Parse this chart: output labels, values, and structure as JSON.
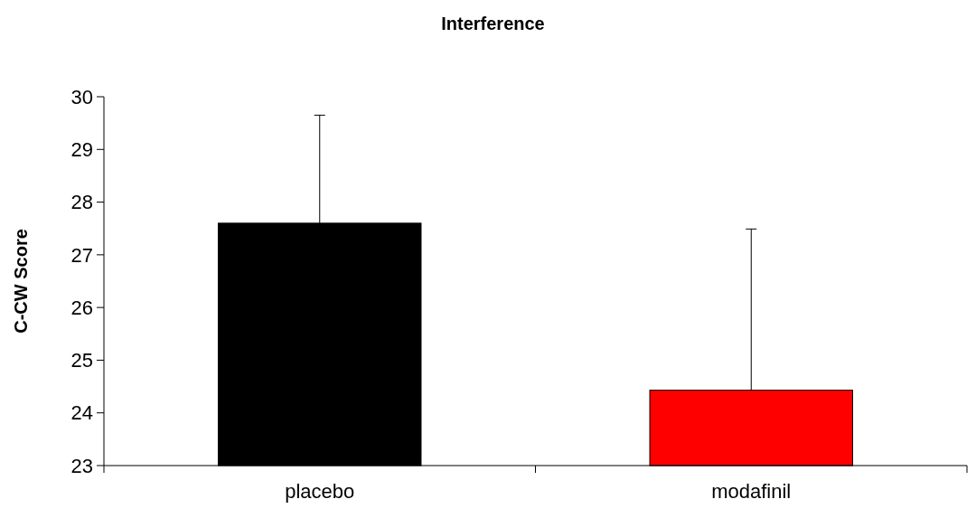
{
  "chart_data": {
    "type": "bar",
    "title": "Interference",
    "ylabel": "C-CW Score",
    "categories": [
      "placebo",
      "modafinil"
    ],
    "values": [
      27.6,
      24.43
    ],
    "colors": [
      "#000000",
      "#ff0000"
    ],
    "errors": [
      [
        27.6,
        29.65
      ],
      [
        24.43,
        27.49
      ]
    ],
    "ylim": [
      23,
      30
    ],
    "yticks": [
      23,
      24,
      25,
      26,
      27,
      28,
      29,
      30
    ],
    "grid": false
  }
}
